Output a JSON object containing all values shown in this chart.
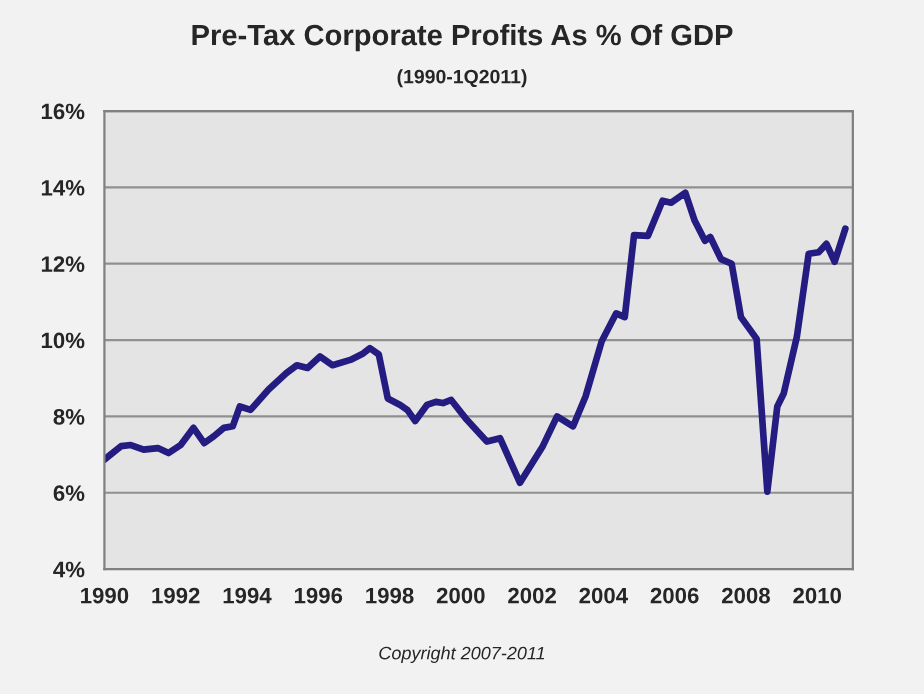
{
  "chart_data": {
    "type": "line",
    "title": "Pre-Tax Corporate Profits As % Of GDP",
    "subtitle": "(1990-1Q2011)",
    "annotations": [
      "Copyright 2007-2011"
    ],
    "series": [
      {
        "color": "#241c80",
        "x": [
          1990.0,
          1990.47,
          1990.74,
          1991.1,
          1991.5,
          1991.8,
          1992.14,
          1992.5,
          1992.8,
          1993.07,
          1993.35,
          1993.6,
          1993.8,
          1994.1,
          1994.6,
          1995.1,
          1995.4,
          1995.7,
          1996.05,
          1996.4,
          1996.9,
          1997.26,
          1997.45,
          1997.7,
          1997.95,
          1998.3,
          1998.5,
          1998.72,
          1999.05,
          1999.3,
          1999.5,
          1999.73,
          2000.17,
          2000.73,
          2001.1,
          2001.66,
          2002.3,
          2002.7,
          2003.15,
          2003.5,
          2003.95,
          2004.36,
          2004.6,
          2004.86,
          2005.25,
          2005.66,
          2005.9,
          2006.3,
          2006.56,
          2006.85,
          2007.0,
          2007.3,
          2007.6,
          2007.86,
          2008.3,
          2008.6,
          2008.88,
          2009.06,
          2009.43,
          2009.76,
          2010.04,
          2010.26,
          2010.49,
          2010.79
        ],
        "values": [
          6.87,
          7.22,
          7.25,
          7.13,
          7.17,
          7.04,
          7.25,
          7.7,
          7.3,
          7.48,
          7.7,
          7.74,
          8.26,
          8.17,
          8.7,
          9.13,
          9.34,
          9.27,
          9.57,
          9.34,
          9.48,
          9.65,
          9.79,
          9.62,
          8.47,
          8.3,
          8.17,
          7.88,
          8.3,
          8.38,
          8.35,
          8.43,
          7.91,
          7.34,
          7.43,
          6.26,
          7.22,
          8.0,
          7.74,
          8.52,
          9.96,
          10.7,
          10.6,
          12.75,
          12.73,
          13.65,
          13.6,
          13.86,
          13.13,
          12.6,
          12.7,
          12.12,
          12.0,
          10.6,
          10.03,
          6.03,
          8.26,
          8.6,
          10.09,
          12.26,
          12.3,
          12.52,
          12.05,
          12.92
        ]
      }
    ],
    "xlim": [
      1990,
      2011
    ],
    "xticks": [
      1990,
      1992,
      1994,
      1996,
      1998,
      2000,
      2002,
      2004,
      2006,
      2008,
      2010
    ],
    "ylim": [
      4,
      16
    ],
    "yticks": [
      {
        "value": 4,
        "label": "4%"
      },
      {
        "value": 6,
        "label": "6%"
      },
      {
        "value": 8,
        "label": "8%"
      },
      {
        "value": 10,
        "label": "10%"
      },
      {
        "value": 12,
        "label": "12%"
      },
      {
        "value": 14,
        "label": "14%"
      },
      {
        "value": 16,
        "label": "16%"
      }
    ],
    "grid": "y",
    "line_style": "solid",
    "marker": "none"
  }
}
